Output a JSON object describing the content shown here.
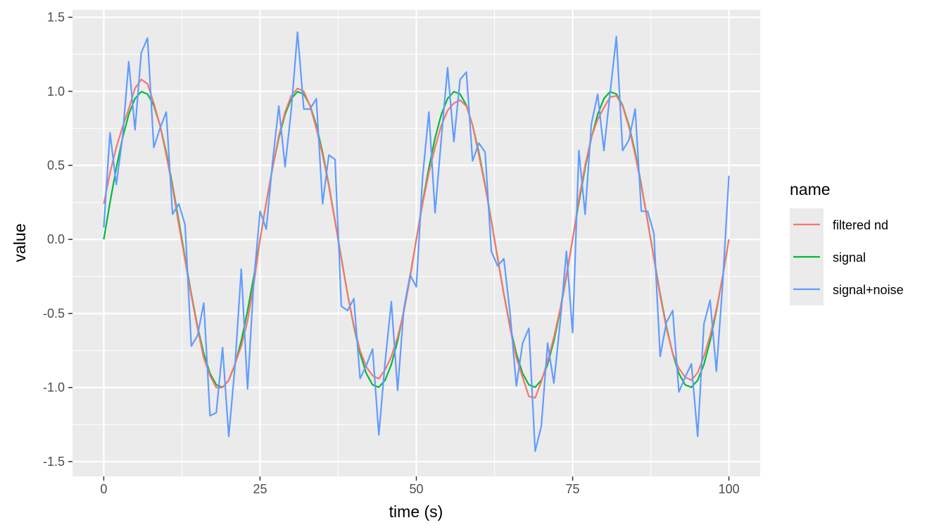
{
  "chart_data": {
    "type": "line",
    "xlabel": "time (s)",
    "ylabel": "value",
    "xlim": [
      -5,
      105
    ],
    "ylim": [
      -1.6,
      1.55
    ],
    "x_ticks": [
      0,
      25,
      50,
      75,
      100
    ],
    "x_tick_labels": [
      "0",
      "25",
      "50",
      "75",
      "100"
    ],
    "y_ticks": [
      1.5,
      1.0,
      0.5,
      0.0,
      -0.5,
      -1.0,
      -1.5
    ],
    "y_tick_labels": [
      "1.5",
      "1.0",
      "0.5",
      "0.0",
      "-0.5",
      "-1.0",
      "-1.5"
    ],
    "grid": true,
    "legend": {
      "title": "name",
      "position": "right",
      "entries": [
        "filtered nd",
        "signal",
        "signal+noise"
      ]
    },
    "series": [
      {
        "name": "signal",
        "color": "#00BA38",
        "x": [
          0,
          1,
          2,
          3,
          4,
          5,
          6,
          7,
          8,
          9,
          10,
          11,
          12,
          13,
          14,
          15,
          16,
          17,
          18,
          19,
          20,
          21,
          22,
          23,
          24,
          25,
          26,
          27,
          28,
          29,
          30,
          31,
          32,
          33,
          34,
          35,
          36,
          37,
          38,
          39,
          40,
          41,
          42,
          43,
          44,
          45,
          46,
          47,
          48,
          49,
          50,
          51,
          52,
          53,
          54,
          55,
          56,
          57,
          58,
          59,
          60,
          61,
          62,
          63,
          64,
          65,
          66,
          67,
          68,
          69,
          70,
          71,
          72,
          73,
          74,
          75,
          76,
          77,
          78,
          79,
          80,
          81,
          82,
          83,
          84,
          85,
          86,
          87,
          88,
          89,
          90,
          91,
          92,
          93,
          94,
          95,
          96,
          97,
          98,
          99,
          100
        ],
        "y": [
          0.0,
          0.249,
          0.482,
          0.685,
          0.844,
          0.951,
          0.998,
          0.982,
          0.905,
          0.771,
          0.588,
          0.368,
          0.125,
          -0.125,
          -0.368,
          -0.588,
          -0.771,
          -0.905,
          -0.982,
          -0.998,
          -0.951,
          -0.844,
          -0.685,
          -0.482,
          -0.249,
          0.0,
          0.249,
          0.482,
          0.685,
          0.844,
          0.951,
          0.998,
          0.982,
          0.905,
          0.771,
          0.588,
          0.368,
          0.125,
          -0.125,
          -0.368,
          -0.588,
          -0.771,
          -0.905,
          -0.982,
          -0.998,
          -0.951,
          -0.844,
          -0.685,
          -0.482,
          -0.249,
          0.0,
          0.249,
          0.482,
          0.685,
          0.844,
          0.951,
          0.998,
          0.982,
          0.905,
          0.771,
          0.588,
          0.368,
          0.125,
          -0.125,
          -0.368,
          -0.588,
          -0.771,
          -0.905,
          -0.982,
          -0.998,
          -0.951,
          -0.844,
          -0.685,
          -0.482,
          -0.249,
          0.0,
          0.249,
          0.482,
          0.685,
          0.844,
          0.951,
          0.998,
          0.982,
          0.905,
          0.771,
          0.588,
          0.368,
          0.125,
          -0.125,
          -0.368,
          -0.588,
          -0.771,
          -0.905,
          -0.982,
          -0.998,
          -0.951,
          -0.844,
          -0.685,
          -0.482,
          -0.249,
          0.0
        ]
      },
      {
        "name": "filtered nd",
        "color": "#F8766D",
        "x": [
          0,
          1,
          2,
          3,
          4,
          5,
          6,
          7,
          8,
          9,
          10,
          11,
          12,
          13,
          14,
          15,
          16,
          17,
          18,
          19,
          20,
          21,
          22,
          23,
          24,
          25,
          26,
          27,
          28,
          29,
          30,
          31,
          32,
          33,
          34,
          35,
          36,
          37,
          38,
          39,
          40,
          41,
          42,
          43,
          44,
          45,
          46,
          47,
          48,
          49,
          50,
          51,
          52,
          53,
          54,
          55,
          56,
          57,
          58,
          59,
          60,
          61,
          62,
          63,
          64,
          65,
          66,
          67,
          68,
          69,
          70,
          71,
          72,
          73,
          74,
          75,
          76,
          77,
          78,
          79,
          80,
          81,
          82,
          83,
          84,
          85,
          86,
          87,
          88,
          89,
          90,
          91,
          92,
          93,
          94,
          95,
          96,
          97,
          98,
          99,
          100
        ],
        "y": [
          0.24,
          0.45,
          0.62,
          0.76,
          0.88,
          1.02,
          1.08,
          1.05,
          0.92,
          0.77,
          0.57,
          0.35,
          0.1,
          -0.14,
          -0.38,
          -0.6,
          -0.8,
          -0.92,
          -1.0,
          -1.0,
          -0.95,
          -0.84,
          -0.72,
          -0.55,
          -0.3,
          0.0,
          0.25,
          0.48,
          0.7,
          0.86,
          0.97,
          1.02,
          1.0,
          0.9,
          0.75,
          0.57,
          0.36,
          0.12,
          -0.13,
          -0.37,
          -0.58,
          -0.75,
          -0.86,
          -0.92,
          -0.94,
          -0.88,
          -0.79,
          -0.66,
          -0.49,
          -0.26,
          0.0,
          0.24,
          0.45,
          0.62,
          0.77,
          0.87,
          0.92,
          0.94,
          0.9,
          0.77,
          0.57,
          0.36,
          0.12,
          -0.13,
          -0.37,
          -0.6,
          -0.8,
          -0.93,
          -1.06,
          -1.07,
          -0.96,
          -0.82,
          -0.66,
          -0.47,
          -0.24,
          0.0,
          0.27,
          0.5,
          0.69,
          0.81,
          0.89,
          0.96,
          0.97,
          0.9,
          0.76,
          0.57,
          0.36,
          0.12,
          -0.13,
          -0.38,
          -0.6,
          -0.77,
          -0.87,
          -0.93,
          -0.95,
          -0.9,
          -0.79,
          -0.65,
          -0.47,
          -0.25,
          0.0
        ]
      },
      {
        "name": "signal+noise",
        "color": "#619CFF",
        "x": [
          0,
          1,
          2,
          3,
          4,
          5,
          6,
          7,
          8,
          9,
          10,
          11,
          12,
          13,
          14,
          15,
          16,
          17,
          18,
          19,
          20,
          21,
          22,
          23,
          24,
          25,
          26,
          27,
          28,
          29,
          30,
          31,
          32,
          33,
          34,
          35,
          36,
          37,
          38,
          39,
          40,
          41,
          42,
          43,
          44,
          45,
          46,
          47,
          48,
          49,
          50,
          51,
          52,
          53,
          54,
          55,
          56,
          57,
          58,
          59,
          60,
          61,
          62,
          63,
          64,
          65,
          66,
          67,
          68,
          69,
          70,
          71,
          72,
          73,
          74,
          75,
          76,
          77,
          78,
          79,
          80,
          81,
          82,
          83,
          84,
          85,
          86,
          87,
          88,
          89,
          90,
          91,
          92,
          93,
          94,
          95,
          96,
          97,
          98,
          99,
          100
        ],
        "y": [
          0.08,
          0.72,
          0.37,
          0.69,
          1.2,
          0.74,
          1.26,
          1.36,
          0.62,
          0.75,
          0.86,
          0.17,
          0.24,
          0.1,
          -0.72,
          -0.65,
          -0.43,
          -1.19,
          -1.17,
          -0.73,
          -1.33,
          -0.85,
          -0.2,
          -1.01,
          -0.28,
          0.19,
          0.07,
          0.52,
          0.9,
          0.49,
          0.88,
          1.4,
          0.88,
          0.88,
          0.95,
          0.24,
          0.57,
          0.54,
          -0.45,
          -0.48,
          -0.4,
          -0.94,
          -0.85,
          -0.74,
          -1.32,
          -0.83,
          -0.42,
          -1.02,
          -0.47,
          -0.24,
          -0.32,
          0.42,
          0.86,
          0.18,
          0.68,
          1.16,
          0.66,
          1.08,
          1.13,
          0.53,
          0.65,
          0.59,
          -0.08,
          -0.18,
          -0.13,
          -0.5,
          -0.99,
          -0.7,
          -0.6,
          -1.43,
          -1.26,
          -0.7,
          -0.97,
          -0.56,
          -0.08,
          -0.63,
          0.6,
          0.17,
          0.78,
          0.98,
          0.6,
          0.99,
          1.37,
          0.6,
          0.67,
          0.88,
          0.19,
          0.19,
          0.04,
          -0.79,
          -0.56,
          -0.48,
          -1.03,
          -0.93,
          -0.84,
          -1.33,
          -0.57,
          -0.41,
          -0.89,
          -0.3,
          0.43
        ]
      }
    ]
  }
}
